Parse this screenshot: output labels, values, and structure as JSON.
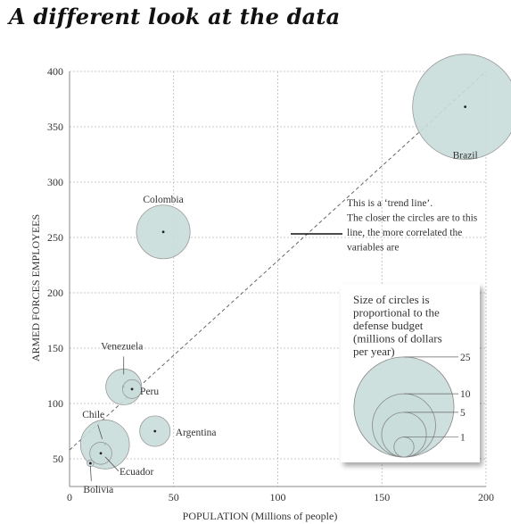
{
  "title": "A different look at the data",
  "chart_data": {
    "type": "scatter",
    "subtype": "bubble",
    "xlabel": "POPULATION (Millions of people)",
    "ylabel": "ARMED FORCES EMPLOYEES",
    "xlim": [
      0,
      200
    ],
    "ylim": [
      25,
      400
    ],
    "x_ticks": [
      0,
      50,
      100,
      150,
      200
    ],
    "y_ticks": [
      50,
      100,
      150,
      200,
      250,
      300,
      350,
      400
    ],
    "grid": true,
    "bubble_color": "#c9ddd9",
    "bubble_edge": "#999999",
    "points": [
      {
        "label": "Brazil",
        "x": 190,
        "y": 368,
        "size": 25
      },
      {
        "label": "Colombia",
        "x": 45,
        "y": 255,
        "size": 6.5
      },
      {
        "label": "Venezuela",
        "x": 26,
        "y": 115,
        "size": 2.9
      },
      {
        "label": "Peru",
        "x": 30,
        "y": 113,
        "size": 0.8
      },
      {
        "label": "Argentina",
        "x": 41,
        "y": 75,
        "size": 2.1
      },
      {
        "label": "Chile",
        "x": 17,
        "y": 63,
        "size": 5.4
      },
      {
        "label": "Ecuador",
        "x": 15,
        "y": 55,
        "size": 1.1
      },
      {
        "label": "Bolivia",
        "x": 10,
        "y": 46,
        "size": 0.1
      }
    ],
    "trend_line": {
      "x": [
        0,
        200
      ],
      "y": [
        58,
        400
      ]
    },
    "annotation": {
      "lines": [
        "This is a ‘trend line’.",
        "The closer the circles are to this",
        "line, the more correlated the",
        "variables are"
      ]
    },
    "size_legend": {
      "title_lines": [
        "Size of circles is",
        "proportional to the",
        "defense budget",
        "(millions of dollars",
        "per year)"
      ],
      "values": [
        25,
        10,
        5,
        1
      ]
    }
  }
}
